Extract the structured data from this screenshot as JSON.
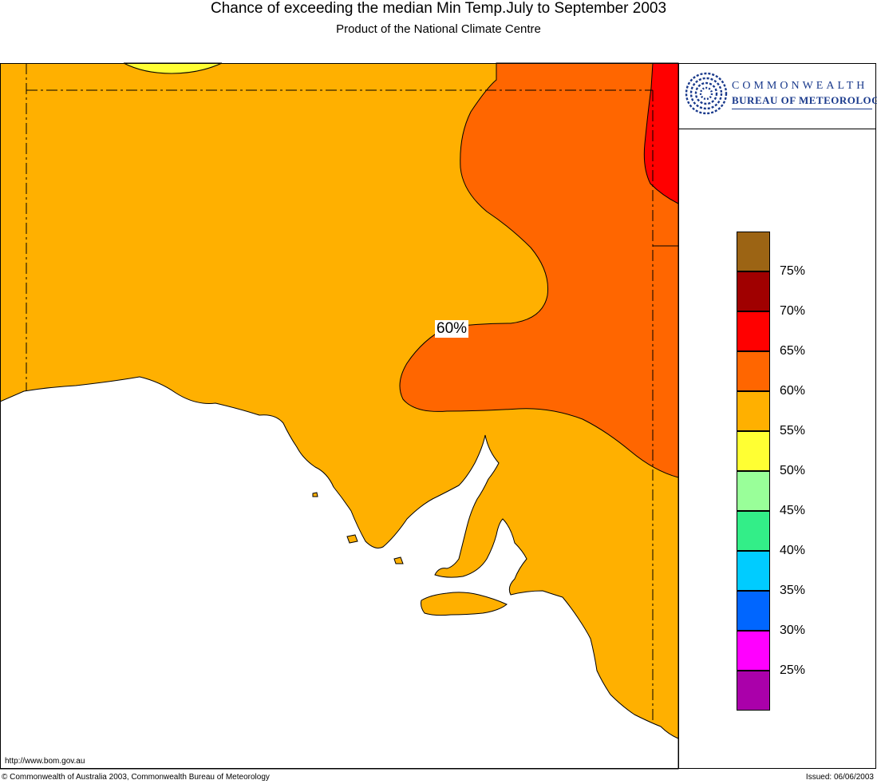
{
  "header": {
    "title": "Chance of exceeding the median Min Temp.July to September 2003",
    "subtitle": "Product of the National Climate Centre"
  },
  "logo": {
    "line1": "COMMONWEALTH",
    "line2": "BUREAU OF METEOROLOGY",
    "icon": "swirl-logo-icon",
    "color": "#1a3a8c"
  },
  "map": {
    "contour_label": "60%",
    "colors": {
      "55-60": "#ffb000",
      "60-65": "#ff6600",
      "65-70": "#ff0000",
      "50-55": "#ffff33",
      "land_outline": "#000000",
      "sea": "#ffffff"
    }
  },
  "legend": [
    {
      "color": "#9c6414",
      "label": "75%"
    },
    {
      "color": "#a00000",
      "label": "70%"
    },
    {
      "color": "#ff0000",
      "label": "65%"
    },
    {
      "color": "#ff6600",
      "label": "60%"
    },
    {
      "color": "#ffb000",
      "label": "55%"
    },
    {
      "color": "#ffff33",
      "label": "50%"
    },
    {
      "color": "#99ff99",
      "label": "45%"
    },
    {
      "color": "#33ee88",
      "label": "40%"
    },
    {
      "color": "#00ccff",
      "label": "35%"
    },
    {
      "color": "#0066ff",
      "label": "30%"
    },
    {
      "color": "#ff00ff",
      "label": "25%"
    },
    {
      "color": "#aa00aa",
      "label": ""
    }
  ],
  "footer": {
    "url": "http://www.bom.gov.au",
    "copyright": "© Commonwealth of Australia 2003, Commonwealth Bureau of Meteorology",
    "issued": "Issued: 06/06/2003"
  }
}
